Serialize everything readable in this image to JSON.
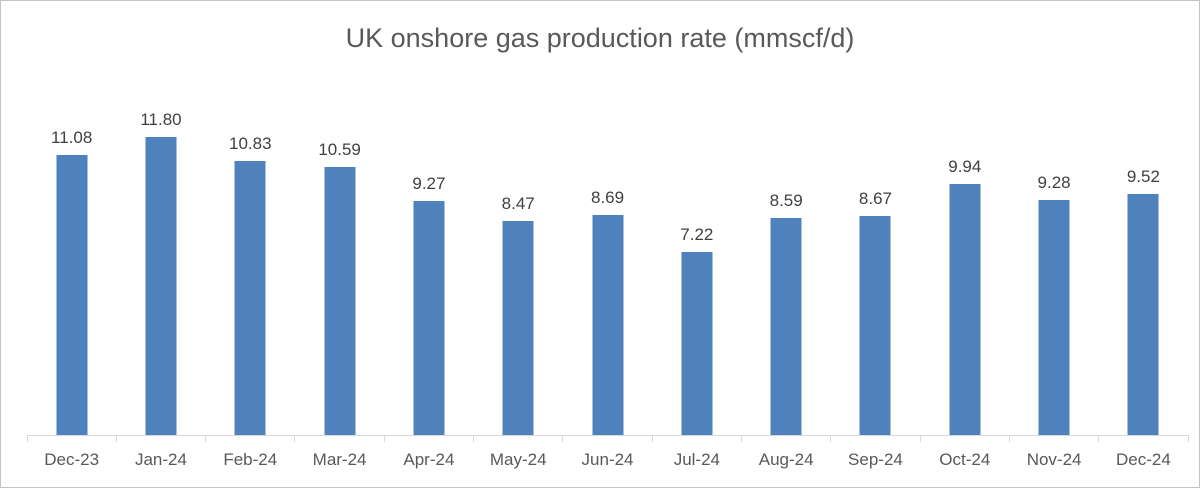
{
  "chart_data": {
    "type": "bar",
    "title": "UK onshore gas production rate (mmscf/d)",
    "categories": [
      "Dec-23",
      "Jan-24",
      "Feb-24",
      "Mar-24",
      "Apr-24",
      "May-24",
      "Jun-24",
      "Jul-24",
      "Aug-24",
      "Sep-24",
      "Oct-24",
      "Nov-24",
      "Dec-24"
    ],
    "values": [
      11.08,
      11.8,
      10.83,
      10.59,
      9.27,
      8.47,
      8.69,
      7.22,
      8.59,
      8.67,
      9.94,
      9.28,
      9.52
    ],
    "data_labels": [
      "11.08",
      "11.80",
      "10.83",
      "10.59",
      "9.27",
      "8.47",
      "8.69",
      "7.22",
      "8.59",
      "8.67",
      "9.94",
      "9.28",
      "9.52"
    ],
    "xlabel": "",
    "ylabel": "",
    "ylim": [
      0,
      14
    ],
    "grid": false,
    "legend": false,
    "axis_ticks": "category-boundaries"
  },
  "colors": {
    "bar": "#4F81BD",
    "title_text": "#595959",
    "axis_text": "#595959",
    "label_text": "#404040",
    "axis_line": "#D9D9D9",
    "frame_border": "#C4C4C4",
    "background": "#FFFFFF"
  }
}
